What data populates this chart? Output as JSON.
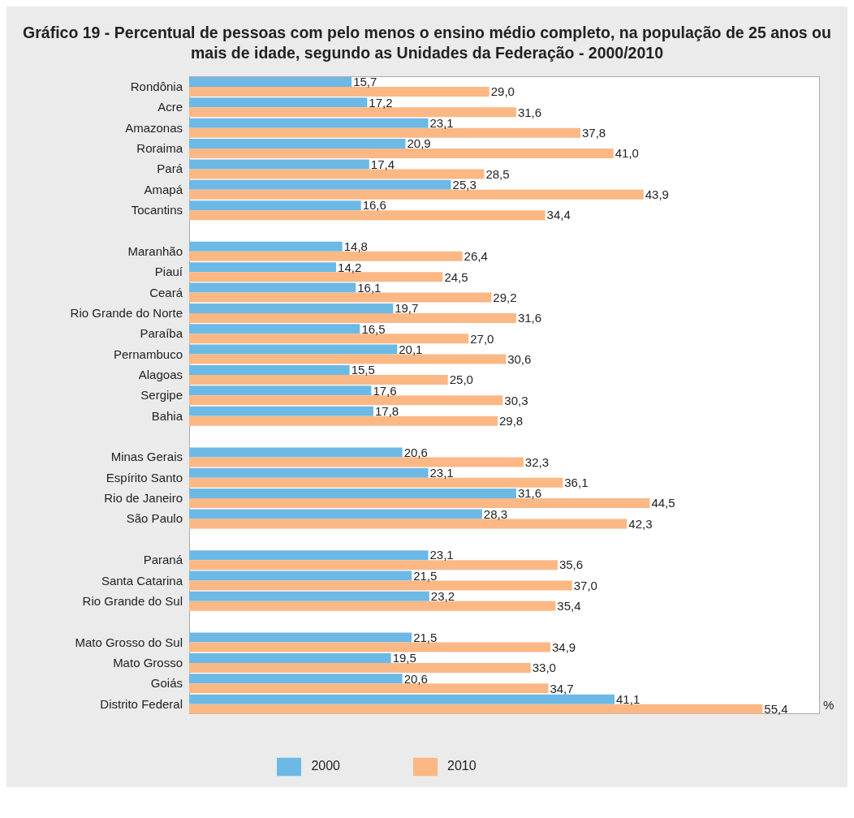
{
  "chart_data": {
    "type": "bar",
    "orientation": "horizontal",
    "title": "Gráfico 19 - Percentual de pessoas com pelo menos o ensino médio completo, na população de 25 anos ou mais de idade, segundo as Unidades da Federação - 2000/2010",
    "annotations": [
      "%"
    ],
    "legend": "bottom",
    "grid": false,
    "categories": [
      "Rondônia",
      "Acre",
      "Amazonas",
      "Roraima",
      "Pará",
      "Amapá",
      "Tocantins",
      null,
      "Maranhão",
      "Piauí",
      "Ceará",
      "Rio Grande do Norte",
      "Paraíba",
      "Pernambuco",
      "Alagoas",
      "Sergipe",
      "Bahia",
      null,
      "Minas Gerais",
      "Espírito Santo",
      "Rio de Janeiro",
      "São Paulo",
      null,
      "Paraná",
      "Santa Catarina",
      "Rio Grande do Sul",
      null,
      "Mato Grosso do Sul",
      "Mato Grosso",
      "Goiás",
      "Distrito Federal"
    ],
    "series": [
      {
        "name": "2000",
        "color": "#6cb9e6",
        "values": [
          15.7,
          17.2,
          23.1,
          20.9,
          17.4,
          25.3,
          16.6,
          null,
          14.8,
          14.2,
          16.1,
          19.7,
          16.5,
          20.1,
          15.5,
          17.6,
          17.8,
          null,
          20.6,
          23.1,
          31.6,
          28.3,
          null,
          23.1,
          21.5,
          23.2,
          null,
          21.5,
          19.5,
          20.6,
          41.1
        ],
        "value_labels": [
          "15,7",
          "17,2",
          "23,1",
          "20,9",
          "17,4",
          "25,3",
          "16,6",
          null,
          "14,8",
          "14,2",
          "16,1",
          "19,7",
          "16,5",
          "20,1",
          "15,5",
          "17,6",
          "17,8",
          null,
          "20,6",
          "23,1",
          "31,6",
          "28,3",
          null,
          "23,1",
          "21,5",
          "23,2",
          null,
          "21,5",
          "19,5",
          "20,6",
          "41,1"
        ]
      },
      {
        "name": "2010",
        "color": "#fbb885",
        "values": [
          29.0,
          31.6,
          37.8,
          41.0,
          28.5,
          43.9,
          34.4,
          null,
          26.4,
          24.5,
          29.2,
          31.6,
          27.0,
          30.6,
          25.0,
          30.3,
          29.8,
          null,
          32.3,
          36.1,
          44.5,
          42.3,
          null,
          35.6,
          37.0,
          35.4,
          null,
          34.9,
          33.0,
          34.7,
          55.4
        ],
        "value_labels": [
          "29,0",
          "31,6",
          "37,8",
          "41,0",
          "28,5",
          "43,9",
          "34,4",
          null,
          "26,4",
          "24,5",
          "29,2",
          "31,6",
          "27,0",
          "30,6",
          "25,0",
          "30,3",
          "29,8",
          null,
          "32,3",
          "36,1",
          "44,5",
          "42,3",
          null,
          "35,6",
          "37,0",
          "35,4",
          null,
          "34,9",
          "33,0",
          "34,7",
          "55,4"
        ]
      }
    ]
  }
}
